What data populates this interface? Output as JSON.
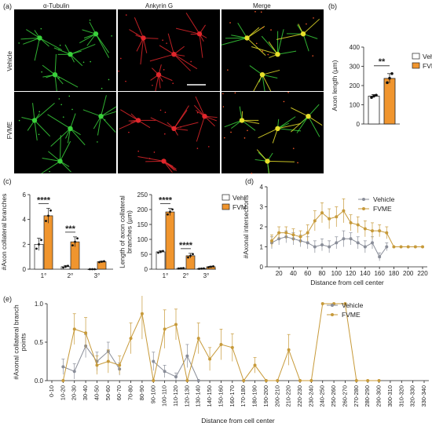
{
  "panel_labels": {
    "a": "(a)",
    "b": "(b)",
    "c": "(c)",
    "d": "(d)",
    "e": "(e)"
  },
  "micrographs": {
    "columns": [
      "α-Tubulin",
      "Ankyrin G",
      "Merge"
    ],
    "rows": [
      "Vehicle",
      "FVME"
    ]
  },
  "colors": {
    "vehicle": "#ffffff",
    "fvme": "#f0952e",
    "vehicle_line": "#8a8e99",
    "fvme_line": "#c79a3a",
    "green": "#39d13b",
    "red": "#e0262b",
    "yellow": "#e8e02a"
  },
  "chart_data": [
    {
      "id": "b",
      "type": "bar",
      "ylabel": "Axon length (µm)",
      "ylim": [
        0,
        400
      ],
      "yticks": [
        0,
        100,
        200,
        300,
        400
      ],
      "series": [
        {
          "name": "Vehicle",
          "values": [
            145
          ],
          "err": [
            8
          ],
          "points": [
            138,
            145,
            150
          ]
        },
        {
          "name": "FVME",
          "values": [
            237
          ],
          "err": [
            25
          ],
          "points": [
            215,
            238,
            262
          ]
        }
      ],
      "significance": "**",
      "legend_position": "top-right"
    },
    {
      "id": "c1",
      "type": "bar",
      "ylabel": "#Axon collateral branches",
      "categories": [
        "1°",
        "2°",
        "3°"
      ],
      "ylim": [
        0,
        6
      ],
      "yticks": [
        0,
        2,
        4,
        6
      ],
      "series": [
        {
          "name": "Vehicle",
          "values": [
            2.0,
            0.2,
            0.0
          ],
          "err": [
            0.5,
            0.1,
            0.0
          ]
        },
        {
          "name": "FVME",
          "values": [
            4.3,
            2.2,
            0.6
          ],
          "err": [
            0.6,
            0.4,
            0.05
          ]
        }
      ],
      "significance": [
        "****",
        "***",
        ""
      ]
    },
    {
      "id": "c2",
      "type": "bar",
      "ylabel": "Length of axon collateral\nbranches (µm)",
      "categories": [
        "1°",
        "2°",
        "3°"
      ],
      "ylim": [
        0,
        250
      ],
      "yticks": [
        0,
        50,
        100,
        150,
        200,
        250
      ],
      "series": [
        {
          "name": "Vehicle",
          "values": [
            58,
            3,
            2
          ],
          "err": [
            4,
            1,
            1
          ]
        },
        {
          "name": "FVME",
          "values": [
            192,
            45,
            8
          ],
          "err": [
            12,
            8,
            2
          ]
        }
      ],
      "significance": [
        "****",
        "****",
        ""
      ],
      "legend_position": "top-right"
    },
    {
      "id": "d",
      "type": "line",
      "xlabel": "Distance from cell center",
      "ylabel": "#Axonal intersections",
      "x": [
        10,
        20,
        30,
        40,
        50,
        60,
        70,
        80,
        90,
        100,
        110,
        120,
        130,
        140,
        150,
        160,
        170,
        180,
        190,
        200,
        210,
        220
      ],
      "xticks": [
        20,
        40,
        60,
        80,
        100,
        120,
        140,
        160,
        180,
        200,
        220
      ],
      "ylim": [
        0,
        4
      ],
      "yticks": [
        0,
        1,
        2,
        3,
        4
      ],
      "series": [
        {
          "name": "Vehicle",
          "values": [
            1.2,
            1.4,
            1.5,
            1.4,
            1.3,
            1.2,
            1.0,
            1.1,
            1.0,
            1.2,
            1.4,
            1.4,
            1.2,
            1.0,
            1.2,
            0.5,
            1.0,
            null,
            null,
            null,
            null,
            null
          ],
          "err": [
            0.3,
            0.3,
            0.3,
            0.3,
            0.3,
            0.3,
            0.3,
            0.3,
            0.3,
            0.3,
            0.4,
            0.3,
            0.3,
            0.3,
            0.3,
            0.2,
            0.2,
            null,
            null,
            null,
            null,
            null
          ]
        },
        {
          "name": "FVME",
          "values": [
            1.3,
            1.7,
            1.7,
            1.6,
            1.5,
            1.7,
            2.3,
            2.7,
            2.4,
            2.5,
            2.8,
            2.2,
            2.1,
            1.9,
            1.8,
            1.8,
            1.7,
            1.0,
            1.0,
            1.0,
            1.0,
            1.0
          ],
          "err": [
            0.3,
            0.3,
            0.3,
            0.3,
            0.3,
            0.4,
            0.5,
            0.5,
            0.5,
            0.5,
            0.6,
            0.4,
            0.4,
            0.4,
            0.4,
            0.3,
            0.3,
            0.0,
            0.0,
            0.0,
            0.0,
            0.0
          ]
        }
      ],
      "legend_position": "top-right"
    },
    {
      "id": "e",
      "type": "line",
      "xlabel": "Distance from cell center",
      "ylabel": "#Axonal collateral branch\npoints",
      "categories": [
        "0-10",
        "10-20",
        "20-30",
        "30-40",
        "40-50",
        "50-60",
        "60-70",
        "70-80",
        "80-90",
        "90-100",
        "100-110",
        "110-120",
        "120-130",
        "130-140",
        "140-150",
        "150-160",
        "160-170",
        "170-180",
        "180-190",
        "190-200",
        "200-210",
        "210-220",
        "220-230",
        "230-240",
        "240-250",
        "250-260",
        "260-270",
        "270-280",
        "280-290",
        "290-300",
        "300-310",
        "310-320",
        "320-330",
        "330-340"
      ],
      "ylim": [
        0,
        1.0
      ],
      "yticks": [
        0.0,
        0.5,
        1.0
      ],
      "series": [
        {
          "name": "Vehicle",
          "values": [
            null,
            0.18,
            0.12,
            0.45,
            0.25,
            0.38,
            0.15,
            null,
            null,
            0.25,
            0.12,
            0.05,
            0.32,
            0.0,
            null,
            null,
            null,
            null,
            null,
            null,
            null,
            null,
            null,
            null,
            null,
            null,
            null,
            null,
            null,
            null,
            null,
            null,
            null,
            null
          ],
          "err": [
            null,
            0.1,
            0.1,
            0.15,
            0.12,
            0.12,
            0.08,
            null,
            null,
            0.12,
            0.08,
            0.05,
            0.15,
            0.0,
            null,
            null,
            null,
            null,
            null,
            null,
            null,
            null,
            null,
            null,
            null,
            null,
            null,
            null,
            null,
            null,
            null,
            null,
            null,
            null
          ]
        },
        {
          "name": "FVME",
          "values": [
            null,
            0.0,
            0.67,
            0.62,
            0.2,
            0.25,
            0.2,
            0.55,
            0.87,
            0.0,
            0.67,
            0.73,
            0.0,
            0.55,
            0.28,
            0.47,
            0.43,
            0.0,
            0.2,
            0.0,
            0.0,
            0.4,
            0.0,
            0.0,
            1.0,
            1.0,
            1.0,
            0.0,
            0.0,
            0.0,
            null,
            null,
            null,
            null
          ],
          "err": [
            null,
            0.0,
            0.2,
            0.2,
            0.12,
            0.15,
            0.12,
            0.2,
            0.33,
            0.0,
            0.25,
            0.2,
            0.0,
            0.2,
            0.15,
            0.2,
            0.18,
            0.0,
            0.1,
            0.0,
            0.0,
            0.2,
            0.0,
            0.0,
            0.0,
            0.0,
            0.0,
            0.0,
            0.0,
            0.0,
            null,
            null,
            null,
            null
          ]
        }
      ],
      "legend_position": "top-right"
    }
  ]
}
